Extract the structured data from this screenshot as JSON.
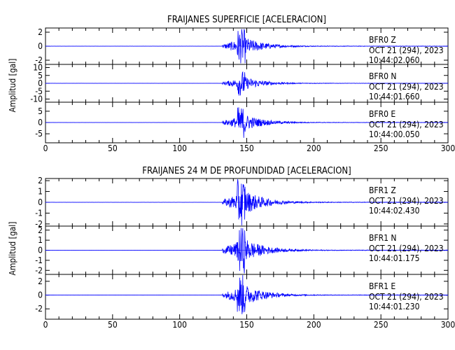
{
  "chart_data": [
    {
      "type": "line",
      "title": "FRAIJANES SUPERFICIE [ACELERACION]",
      "ylabel": "Amplitud [gal]",
      "xlim": [
        0,
        300
      ],
      "x_ticks": [
        "0",
        "50",
        "100",
        "150",
        "200",
        "250",
        "300"
      ],
      "event_start_s": 132,
      "peak_s": 146,
      "series": [
        {
          "name": "BFR0 Z",
          "channel": "Z",
          "date": "OCT 21 (294), 2023",
          "time": "10:44:02.060",
          "ylim": [
            -2.6,
            2.6
          ],
          "y_ticks": [
            "2",
            "0",
            "-2"
          ],
          "peak_amplitude": 2.5,
          "color": "#0000ff"
        },
        {
          "name": "BFR0 N",
          "channel": "N",
          "date": "OCT 21 (294), 2023",
          "time": "10:44:01.660",
          "ylim": [
            -12,
            12
          ],
          "y_ticks": [
            "10",
            "5",
            "0",
            "-5",
            "-10"
          ],
          "peak_amplitude": 8,
          "color": "#0000ff"
        },
        {
          "name": "BFR0 E",
          "channel": "E",
          "date": "OCT 21 (294), 2023",
          "time": "10:44:00.050",
          "ylim": [
            -9,
            9
          ],
          "y_ticks": [
            "5",
            "0",
            "-5"
          ],
          "peak_amplitude": 7,
          "color": "#0000ff"
        }
      ]
    },
    {
      "type": "line",
      "title": "FRAIJANES 24 M DE PROFUNDIDAD [ACELERACION]",
      "ylabel": "Amplitud [gal]",
      "xlim": [
        0,
        300
      ],
      "x_ticks": [
        "0",
        "50",
        "100",
        "150",
        "200",
        "250",
        "300"
      ],
      "event_start_s": 132,
      "peak_s": 146,
      "series": [
        {
          "name": "BFR1 Z",
          "channel": "Z",
          "date": "OCT 21 (294), 2023",
          "time": "10:44:02.430",
          "ylim": [
            -2.2,
            2.2
          ],
          "y_ticks": [
            "2",
            "1",
            "0",
            "-1",
            "-2"
          ],
          "peak_amplitude": 2.2,
          "color": "#0000ff"
        },
        {
          "name": "BFR1 N",
          "channel": "N",
          "date": "OCT 21 (294), 2023",
          "time": "10:44:01.175",
          "ylim": [
            -2.4,
            2.4
          ],
          "y_ticks": [
            "2",
            "1",
            "0",
            "-1",
            "-2"
          ],
          "peak_amplitude": 2.3,
          "color": "#0000ff"
        },
        {
          "name": "BFR1 E",
          "channel": "E",
          "date": "OCT 21 (294), 2023",
          "time": "10:44:01.230",
          "ylim": [
            -3.5,
            3
          ],
          "y_ticks": [
            "2",
            "0",
            "-2"
          ],
          "peak_amplitude": 3,
          "color": "#0000ff"
        }
      ]
    }
  ]
}
